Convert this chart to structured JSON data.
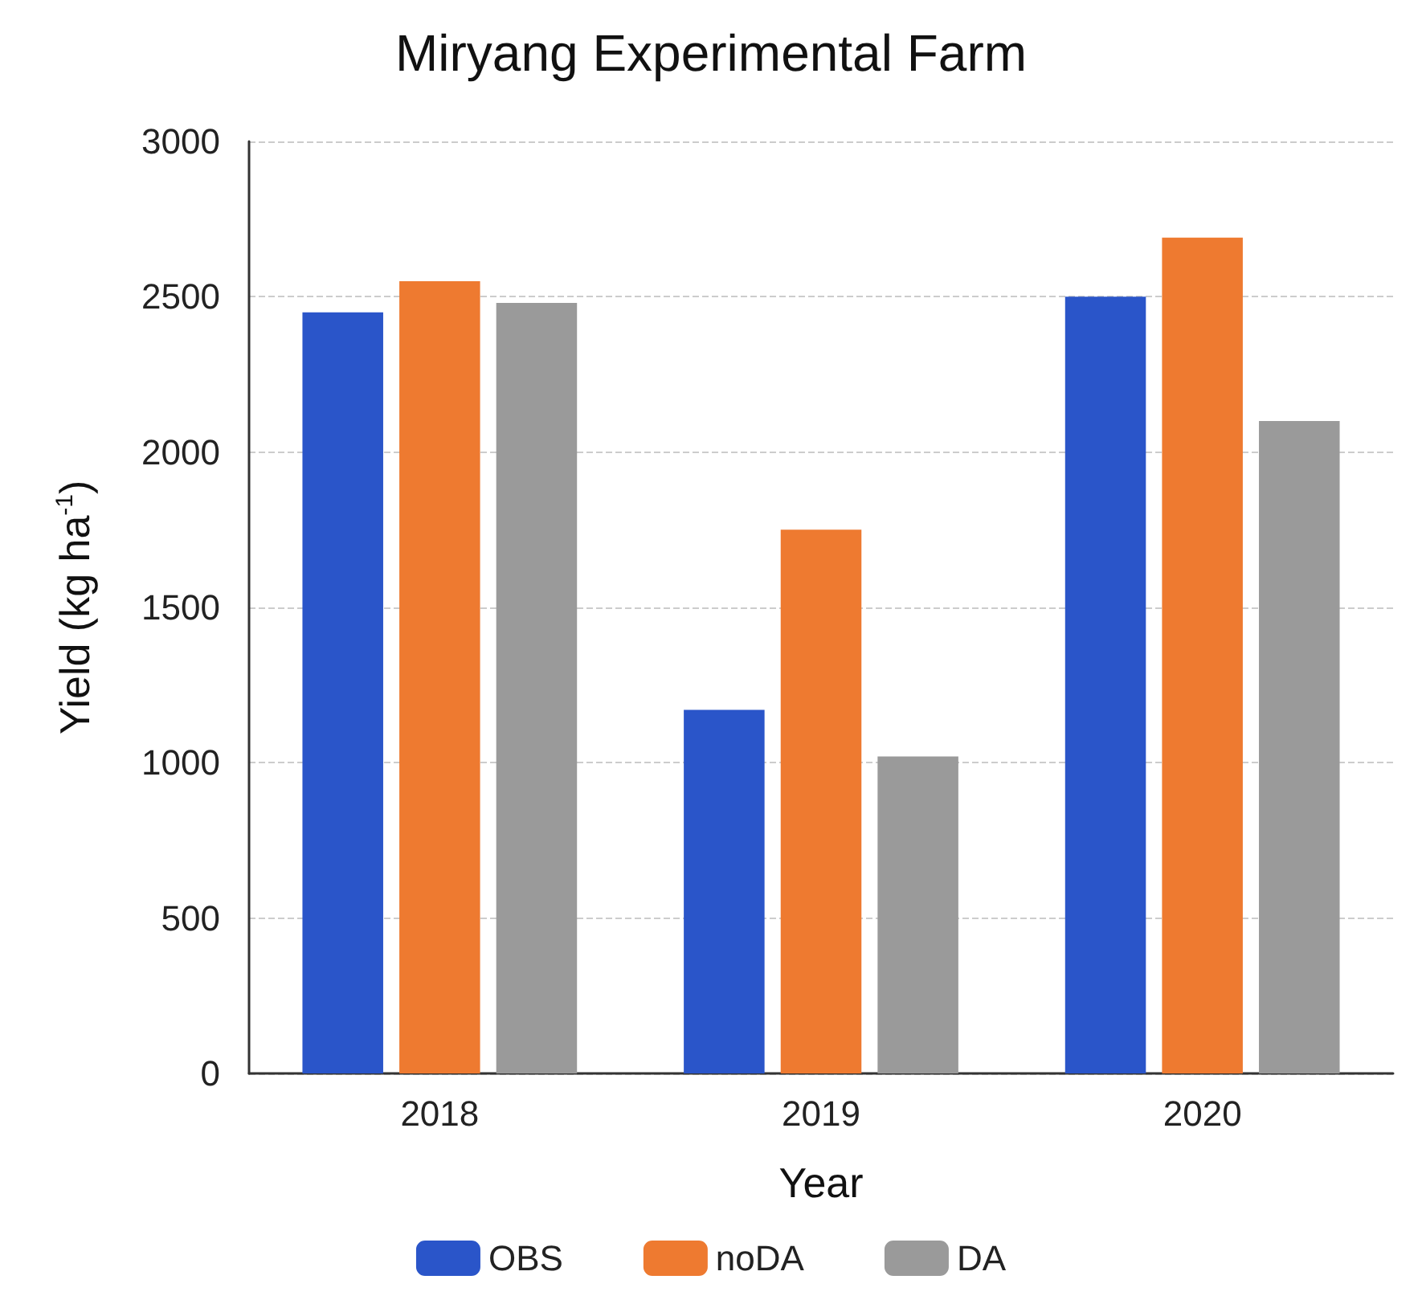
{
  "chart_data": {
    "type": "bar",
    "title": "Miryang Experimental Farm",
    "xlabel": "Year",
    "ylabel": "Yield (kg ha$^{-1}$)",
    "categories": [
      "2018",
      "2019",
      "2020"
    ],
    "series": [
      {
        "name": "OBS",
        "color": "#2a55c9",
        "values": [
          2450,
          1170,
          2500
        ]
      },
      {
        "name": "noDA",
        "color": "#ee7a30",
        "values": [
          2550,
          1750,
          2690
        ]
      },
      {
        "name": "DA",
        "color": "#9a9a9a",
        "values": [
          2480,
          1020,
          2100
        ]
      }
    ],
    "ylim": [
      0,
      3000
    ],
    "yticks": [
      0,
      500,
      1000,
      1500,
      2000,
      2500,
      3000
    ],
    "grid": "y",
    "legend": "bottom"
  }
}
